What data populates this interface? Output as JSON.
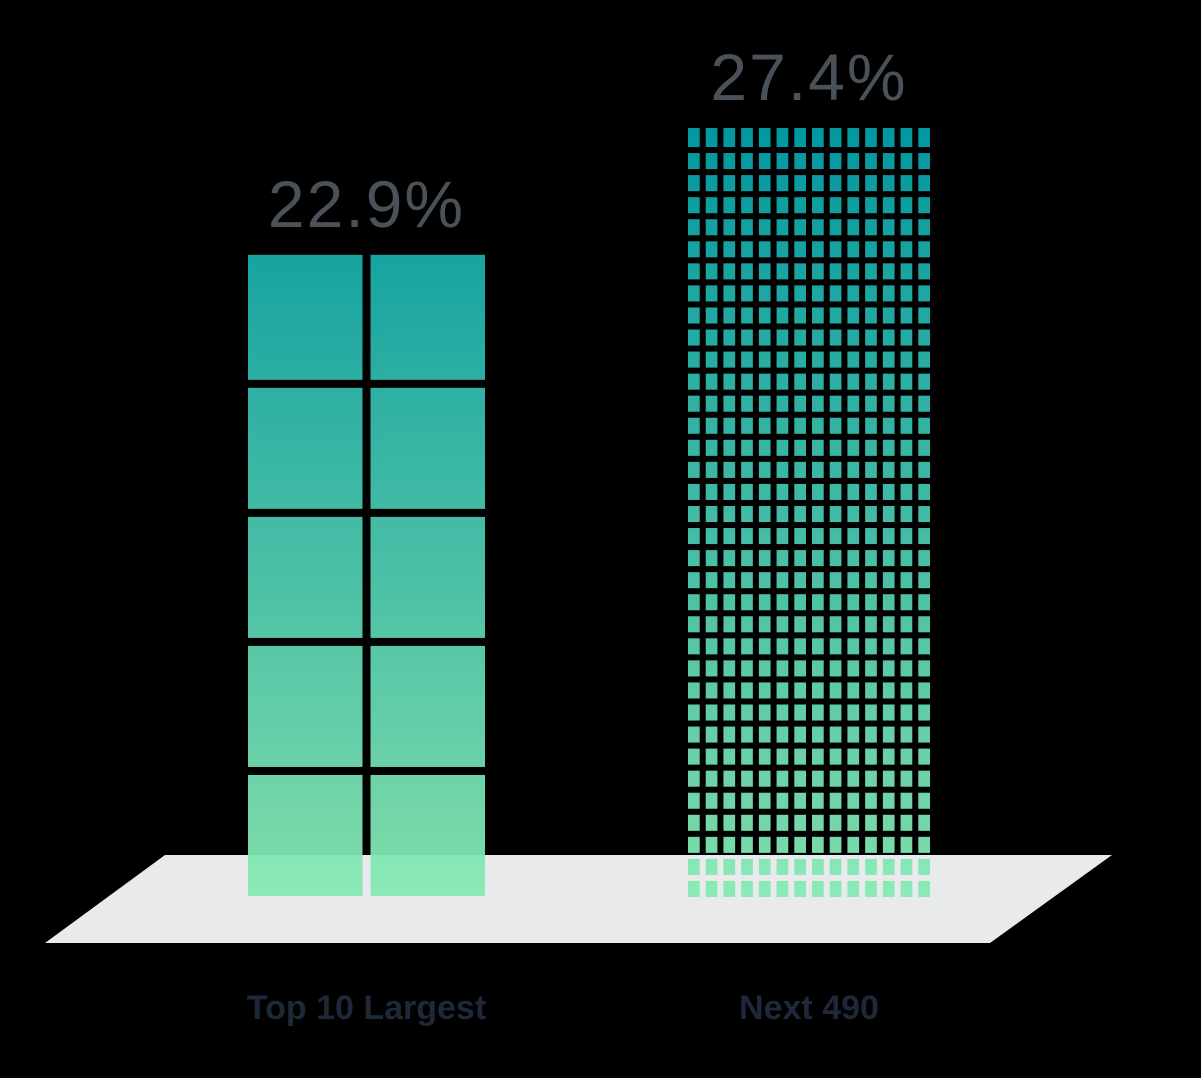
{
  "chart_data": {
    "type": "bar",
    "categories": [
      "Top 10 Largest",
      "Next 490"
    ],
    "values": [
      22.9,
      27.4
    ],
    "value_labels": [
      "22.9%",
      "27.4%"
    ],
    "color": [
      "#03a0a8",
      "#88eab4"
    ]
  }
}
